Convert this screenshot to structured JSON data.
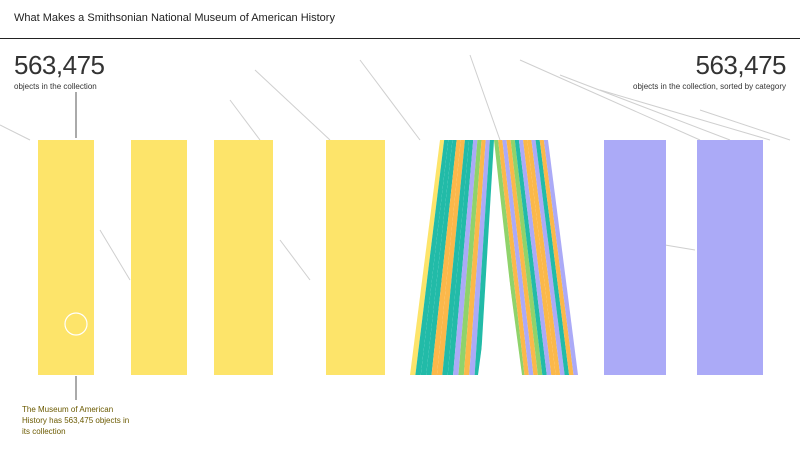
{
  "chart_data": {
    "type": "bar",
    "title": "What Makes a Smithsonian National Museum of American History",
    "left_total": "563,475",
    "left_caption": "objects in the collection",
    "right_total": "563,475",
    "right_caption": "objects in the collection, sorted by category",
    "annotation": "The Museum of American History has 563,475 objects in its collection",
    "bars": [
      {
        "name": "bar-1",
        "color": "#fde46a"
      },
      {
        "name": "bar-2",
        "color": "#fde46a"
      },
      {
        "name": "bar-3",
        "color": "#fde46a"
      },
      {
        "name": "bar-4",
        "color": "#fde46a"
      },
      {
        "name": "bar-5",
        "color": "#fde46a"
      },
      {
        "name": "bar-6",
        "color": "#abaaf7"
      },
      {
        "name": "bar-7",
        "color": "#abaaf7"
      }
    ],
    "colors": {
      "yellow": "#fde46a",
      "teal": "#22bba8",
      "orange": "#fbb84a",
      "lavender": "#abaaf7",
      "green": "#8fd36b",
      "rule": "#222222"
    }
  }
}
